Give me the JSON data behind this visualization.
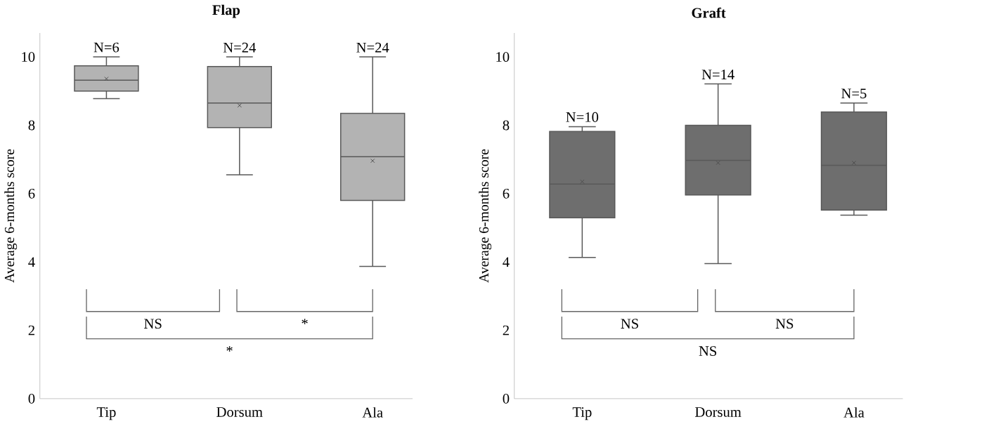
{
  "chart_data": [
    {
      "type": "box",
      "title": "Flap",
      "ylabel": "Average 6-months score",
      "categories": [
        "Tip",
        "Dorsum",
        "Ala"
      ],
      "ylim": [
        0,
        10.7
      ],
      "yticks": [
        0,
        2,
        4,
        6,
        8,
        10
      ],
      "series": [
        {
          "color": "#b3b3b3",
          "boxes": [
            {
              "low": 8.78,
              "q1": 9.0,
              "median": 9.32,
              "q3": 9.74,
              "high": 10,
              "mean": 9.36
            },
            {
              "low": 6.55,
              "q1": 7.93,
              "median": 8.65,
              "q3": 9.72,
              "high": 10,
              "mean": 8.58
            },
            {
              "low": 3.87,
              "q1": 5.8,
              "median": 7.08,
              "q3": 8.35,
              "high": 10,
              "mean": 6.96
            }
          ]
        }
      ],
      "annotations": [
        "N=6",
        "N=24",
        "N=24",
        "NS",
        "*",
        "*"
      ]
    },
    {
      "type": "box",
      "title": "Graft",
      "ylabel": "Average 6-months score",
      "categories": [
        "Tip",
        "Dorsum",
        "Ala"
      ],
      "ylim": [
        0,
        10.7
      ],
      "yticks": [
        0,
        2,
        4,
        6,
        8,
        10
      ],
      "series": [
        {
          "color": "#6e6e6e",
          "boxes": [
            {
              "low": 4.13,
              "q1": 5.29,
              "median": 6.28,
              "q3": 7.82,
              "high": 7.96,
              "mean": 6.35
            },
            {
              "low": 3.95,
              "q1": 5.96,
              "median": 6.97,
              "q3": 8.0,
              "high": 9.21,
              "mean": 6.9
            },
            {
              "low": 5.37,
              "q1": 5.52,
              "median": 6.83,
              "q3": 8.39,
              "high": 8.65,
              "mean": 6.9
            }
          ]
        }
      ],
      "annotations": [
        "N=10",
        "N=14",
        "N=5",
        "NS",
        "NS",
        "NS"
      ]
    }
  ]
}
